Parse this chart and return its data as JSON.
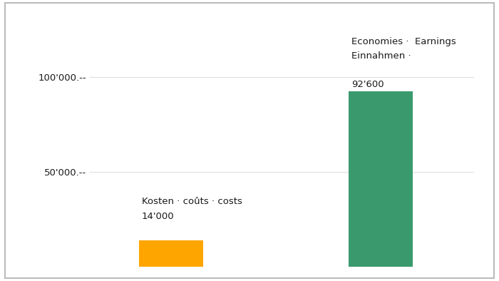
{
  "values": [
    14000,
    92600
  ],
  "bar_colors": [
    "#FFA500",
    "#3A9A6E"
  ],
  "bar_width": 0.55,
  "bar_positions": [
    1.0,
    2.8
  ],
  "ylim": [
    0,
    108000
  ],
  "yticks": [
    50000,
    100000
  ],
  "ytick_labels": [
    "50'000.--",
    "100'000.--"
  ],
  "label_kosten_line1": "Kosten · coûts · costs",
  "label_kosten_value": "14'000",
  "label_einnahmen_line1": "Einnahmen ·",
  "label_einnahmen_line2": "Economies ·  Earnings",
  "label_einnahmen_value": "92'600",
  "background_color": "#FFFFFF",
  "grid_color": "#DEDEDE",
  "text_color": "#1A1A1A",
  "font_size_label": 9.5,
  "font_size_value": 9.5,
  "font_size_ytick": 9.5,
  "xlim": [
    0.3,
    3.6
  ]
}
